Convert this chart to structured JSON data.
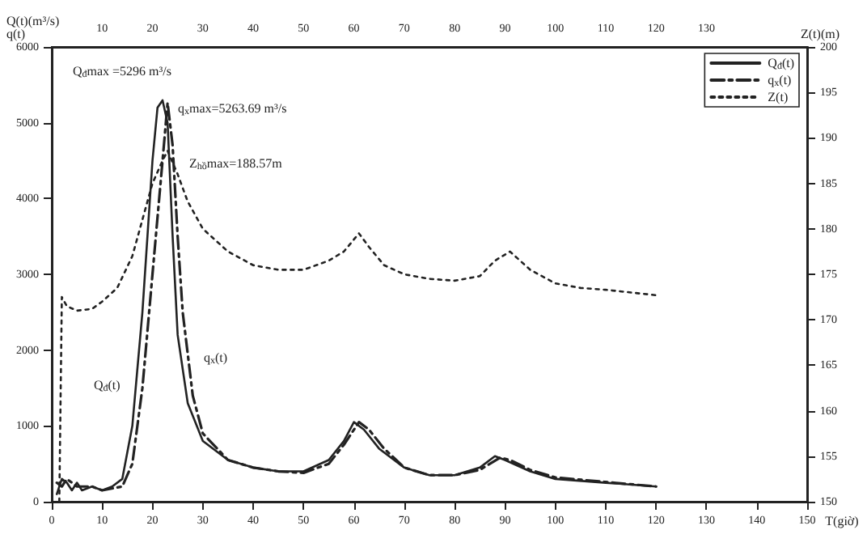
{
  "chart_data": {
    "type": "line",
    "xlabel": "T(giờ)",
    "ylabel": "Q(t)(m³/s)\nq(t)",
    "y2label": "Z(t)(m)",
    "annotations": [
      "Q$_{đ}$max =5296 m³/s",
      "q$_{x}$max=5263.69 m³/s",
      "Z$_{hồ}$max=188.57m",
      "Q$_{đ}$(t)",
      "q$_{x}$(t)"
    ],
    "series": [
      {
        "name": "Q$_{đ}$(t)",
        "color": "#222222",
        "line_style": "solid",
        "x": [
          1,
          2,
          3,
          4,
          5,
          6,
          8,
          10,
          12,
          14,
          16,
          18,
          20,
          21,
          22,
          23,
          24,
          25,
          27,
          30,
          35,
          40,
          45,
          50,
          55,
          58,
          60,
          62,
          65,
          70,
          75,
          80,
          85,
          88,
          90,
          95,
          100,
          110,
          120
        ],
        "values": [
          100,
          300,
          250,
          150,
          250,
          150,
          200,
          150,
          200,
          300,
          1000,
          2500,
          4500,
          5200,
          5296,
          5000,
          3500,
          2200,
          1300,
          800,
          550,
          450,
          400,
          400,
          550,
          800,
          1050,
          950,
          700,
          450,
          350,
          350,
          450,
          600,
          550,
          400,
          300,
          250,
          200
        ]
      },
      {
        "name": "q$_{x}$(t)",
        "color": "#222222",
        "line_style": "dashed",
        "x": [
          1,
          2,
          3,
          5,
          8,
          10,
          14,
          16,
          18,
          20,
          22,
          23,
          24,
          25,
          26,
          28,
          30,
          35,
          40,
          45,
          50,
          55,
          58,
          61,
          63,
          66,
          70,
          75,
          80,
          85,
          89,
          91,
          95,
          100,
          110,
          120
        ],
        "values": [
          250,
          200,
          300,
          200,
          200,
          150,
          200,
          500,
          1500,
          3000,
          4500,
          5263.69,
          4700,
          3500,
          2500,
          1400,
          900,
          550,
          450,
          400,
          380,
          500,
          750,
          1050,
          950,
          700,
          450,
          350,
          350,
          420,
          580,
          550,
          420,
          320,
          260,
          200
        ]
      },
      {
        "name": "Z(t)",
        "color": "#222222",
        "line_style": "dotted",
        "axis": "y2",
        "x": [
          1.5,
          2,
          3,
          5,
          8,
          10,
          13,
          16,
          18,
          20,
          22,
          23,
          25,
          27,
          30,
          35,
          40,
          45,
          50,
          55,
          58,
          61,
          63,
          66,
          70,
          75,
          80,
          85,
          88,
          91,
          95,
          100,
          105,
          110,
          115,
          120
        ],
        "values": [
          150,
          172.5,
          171.5,
          171,
          171.2,
          172,
          173.5,
          177,
          181,
          185,
          187.5,
          188.57,
          186,
          183,
          180,
          177.5,
          176,
          175.5,
          175.5,
          176.5,
          177.5,
          179.5,
          178,
          176,
          175,
          174.5,
          174.3,
          174.8,
          176.5,
          177.5,
          175.5,
          174,
          173.5,
          173.3,
          173,
          172.7
        ]
      }
    ],
    "xlim": [
      0,
      150
    ],
    "xticks": [
      0,
      10,
      20,
      30,
      40,
      50,
      60,
      70,
      80,
      90,
      100,
      110,
      120,
      130,
      140,
      150
    ],
    "x2lim": [
      0,
      150
    ],
    "x2ticks": [
      10,
      20,
      30,
      40,
      50,
      60,
      70,
      80,
      90,
      100,
      110,
      120,
      130
    ],
    "ylim": [
      0,
      6000
    ],
    "yticks": [
      0,
      1000,
      2000,
      3000,
      4000,
      5000,
      6000
    ],
    "y2lim": [
      150,
      200
    ],
    "y2ticks": [
      150,
      155,
      160,
      165,
      170,
      175,
      180,
      185,
      190,
      195,
      200
    ],
    "grid": false,
    "legend": "top right",
    "marker": "none"
  }
}
